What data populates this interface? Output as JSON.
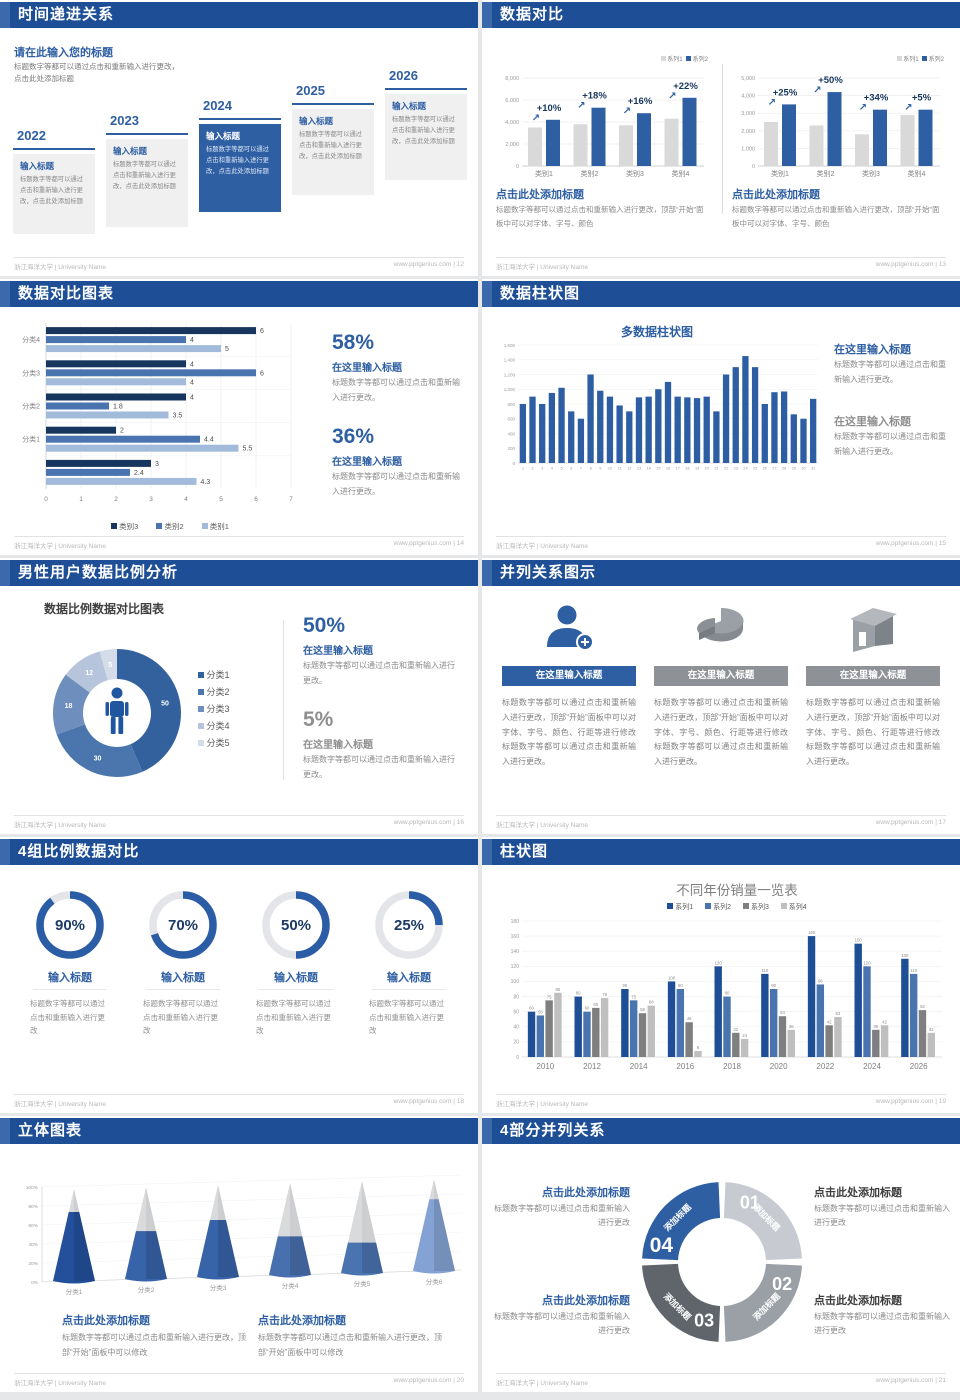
{
  "footer": {
    "left": "浙江海洋大学 | University Name",
    "url": "www.pptgenius.com",
    "sep": "|"
  },
  "colors": {
    "header_bar": "#1e4f96",
    "accent_blue": "#2e5fa3",
    "dark_navy": "#17365d",
    "mid_blue": "#4a74b0",
    "light_blue": "#a3bbdb",
    "gray_bar": "#d9d9d9",
    "body_gray": "#8a8a8a",
    "title_gray": "#8f8f8f"
  },
  "slides": {
    "timeline": {
      "header": "时间递进关系",
      "page": "12",
      "intro_title": "请在此输入您的标题",
      "intro_body": "标题数字等都可以通过点击和重新输入进行更改，点击此处添加标题",
      "item_title": "输入标题",
      "item_body": "标题数字等都可以通过点击和重新输入进行更改，点击此处添加标题",
      "years": [
        "2022",
        "2023",
        "2024",
        "2025",
        "2026"
      ],
      "highlight_index": 2
    },
    "compare": {
      "header": "数据对比",
      "page": "13",
      "legend": [
        "系列1",
        "系列2"
      ],
      "caption_title": "点击此处添加标题",
      "caption_body": "标题数字等都可以通过点击和重新输入进行更改，顶部“开始”面板中可以对字体、字号、颜色",
      "charts": [
        {
          "ymax": 8000,
          "yticks": [
            "0",
            "2,000",
            "4,000",
            "6,000",
            "8,000"
          ],
          "categories": [
            "类别1",
            "类别2",
            "类别3",
            "类别4"
          ],
          "series1": [
            3500,
            3800,
            3700,
            4300
          ],
          "series2": [
            4200,
            5300,
            4800,
            6200
          ],
          "pct_labels": [
            "+10%",
            "+18%",
            "+16%",
            "+22%"
          ]
        },
        {
          "ymax": 5000,
          "yticks": [
            "0",
            "1,000",
            "2,000",
            "3,000",
            "4,000",
            "5,000"
          ],
          "categories": [
            "类别1",
            "类别2",
            "类别3",
            "类别4"
          ],
          "series1": [
            2500,
            2300,
            1800,
            2900
          ],
          "series2": [
            3500,
            4200,
            3200,
            3200
          ],
          "pct_labels": [
            "+25%",
            "+50%",
            "+34%",
            "+5%"
          ]
        }
      ]
    },
    "hbar": {
      "header": "数据对比图表",
      "page": "14",
      "xmax": 7,
      "xticks": [
        "0",
        "1",
        "2",
        "3",
        "4",
        "5",
        "6",
        "7"
      ],
      "groups": [
        {
          "label": "分类4",
          "values": [
            6,
            4,
            5
          ]
        },
        {
          "label": "分类3",
          "values": [
            4,
            6,
            4
          ]
        },
        {
          "label": "分类2",
          "values": [
            4,
            1.8,
            3.5
          ]
        },
        {
          "label": "分类1",
          "values": [
            2,
            4.4,
            5.5
          ]
        },
        {
          "label": "",
          "values": [
            3,
            2.4,
            4.3
          ]
        }
      ],
      "legend": [
        "类别3",
        "类别2",
        "类别1"
      ],
      "stats": [
        {
          "pct": "58%",
          "title": "在这里输入标题",
          "body": "标题数字等都可以通过点击和重新输入进行更改。",
          "style": "blue"
        },
        {
          "pct": "36%",
          "title": "在这里输入标题",
          "body": "标题数字等都可以通过点击和重新输入进行更改。",
          "style": "blue"
        }
      ]
    },
    "col31": {
      "header": "数据柱状图",
      "page": "15",
      "title": "多数据柱状图",
      "ymax": 1600,
      "yticks": [
        "0",
        "200",
        "400",
        "600",
        "800",
        "1,000",
        "1,200",
        "1,400",
        "1,600"
      ],
      "values": [
        800,
        900,
        800,
        950,
        1020,
        700,
        600,
        1200,
        980,
        900,
        780,
        700,
        890,
        900,
        1000,
        1100,
        900,
        890,
        880,
        900,
        700,
        1200,
        1300,
        1450,
        1300,
        800,
        960,
        970,
        660,
        600,
        870
      ],
      "stats": [
        {
          "title": "在这里输入标题",
          "body": "标题数字等都可以通过点击和重新输入进行更改。",
          "style": "blue"
        },
        {
          "title": "在这里输入标题",
          "body": "标题数字等都可以通过点击和重新输入进行更改。",
          "style": "gray"
        }
      ]
    },
    "donut": {
      "header": "男性用户数据比例分析",
      "page": "16",
      "title": "数据比例数据对比图表",
      "slices": [
        {
          "label": "分类1",
          "value": 50,
          "color": "#33619e"
        },
        {
          "label": "分类2",
          "value": 30,
          "color": "#4a76ad"
        },
        {
          "label": "分类3",
          "value": 18,
          "color": "#6e8ebd"
        },
        {
          "label": "分类4",
          "value": 12,
          "color": "#b7c5dc"
        },
        {
          "label": "分类5",
          "value": 5,
          "color": "#d5dce9"
        }
      ],
      "stats": [
        {
          "pct": "50%",
          "title": "在这里输入标题",
          "body": "标题数字等都可以通过点击和重新输入进行更改。",
          "style": "blue"
        },
        {
          "pct": "5%",
          "title": "在这里输入标题",
          "body": "标题数字等都可以通过点击和重新输入进行更改。",
          "style": "gray"
        }
      ]
    },
    "parallel3": {
      "header": "并列关系图示",
      "page": "17",
      "items": [
        {
          "title": "在这里输入标题",
          "icon": "person-add-icon",
          "style": "blue"
        },
        {
          "title": "在这里输入标题",
          "icon": "pie-3d-icon",
          "style": "gray"
        },
        {
          "title": "在这里输入标题",
          "icon": "building-icon",
          "style": "gray"
        }
      ],
      "body": "标题数字等都可以通过点击和重新输入进行更改，顶部“开始”面板中可以对字体、字号、颜色、行距等进行修改标题数字等都可以通过点击和重新输入进行更改。"
    },
    "rings": {
      "header": "4组比例数据对比",
      "page": "18",
      "item_title": "输入标题",
      "item_body": "标题数字等都可以通过点击和重新输入进行更改",
      "items": [
        {
          "pct": 90,
          "label": "90%"
        },
        {
          "pct": 70,
          "label": "70%"
        },
        {
          "pct": 50,
          "label": "50%"
        },
        {
          "pct": 25,
          "label": "25%"
        }
      ]
    },
    "yearbars": {
      "header": "柱状图",
      "page": "19",
      "title": "不同年份销量一览表",
      "legend": [
        "系列1",
        "系列2",
        "系列3",
        "系列4"
      ],
      "years": [
        "2010",
        "2012",
        "2014",
        "2016",
        "2018",
        "2020",
        "2022",
        "2024",
        "2026"
      ],
      "ymax": 180,
      "yticks": [
        "0",
        "20",
        "40",
        "60",
        "80",
        "100",
        "120",
        "140",
        "160",
        "180"
      ],
      "series": [
        {
          "name": "系列1",
          "color": "#1e4f96",
          "values": [
            60,
            80,
            90,
            100,
            120,
            110,
            160,
            150,
            130
          ]
        },
        {
          "name": "系列2",
          "color": "#4a74b0",
          "values": [
            55,
            60,
            75,
            90,
            80,
            90,
            96,
            120,
            110
          ]
        },
        {
          "name": "系列3",
          "color": "#7f7f7f",
          "values": [
            75,
            65,
            58,
            46,
            32,
            54,
            42,
            36,
            62
          ]
        },
        {
          "name": "系列4",
          "color": "#bfbfbf",
          "values": [
            85,
            78,
            68,
            8,
            24,
            36,
            53,
            42,
            32
          ]
        }
      ]
    },
    "cones": {
      "header": "立体图表",
      "page": "20",
      "yticks": [
        "0%",
        "20%",
        "40%",
        "60%",
        "80%",
        "100%"
      ],
      "categories": [
        "分类1",
        "分类2",
        "分类3",
        "分类4",
        "分类5",
        "分类6"
      ],
      "fills_pct": [
        75,
        52,
        62,
        42,
        33,
        78
      ],
      "fill_colors": [
        "#24509b",
        "#3763a8",
        "#3763a8",
        "#486fae",
        "#4a74b0",
        "#84a3d4"
      ],
      "captions": [
        {
          "title": "点击此处添加标题",
          "body": "标题数字等都可以通过点击和重新输入进行更改，顶部“开始”面板中可以修改"
        },
        {
          "title": "点击此处添加标题",
          "body": "标题数字等都可以通过点击和重新输入进行更改，顶部“开始”面板中可以修改"
        }
      ]
    },
    "circle4": {
      "header": "4部分并列关系",
      "page": "21",
      "segments": [
        {
          "num": "01",
          "label": "添加标题",
          "color": "#c7cbd1"
        },
        {
          "num": "02",
          "label": "添加标题",
          "color": "#9aa0a6"
        },
        {
          "num": "03",
          "label": "添加标题",
          "color": "#5f656b"
        },
        {
          "num": "04",
          "label": "添加标题",
          "color": "#2e5fa3"
        }
      ],
      "captions": [
        {
          "title": "点击此处添加标题",
          "body": "标题数字等都可以通过点击和重新输入进行更改",
          "pos": "tl",
          "style": "blue"
        },
        {
          "title": "点击此处添加标题",
          "body": "标题数字等都可以通过点击和重新输入进行更改",
          "pos": "tr",
          "style": "dark"
        },
        {
          "title": "点击此处添加标题",
          "body": "标题数字等都可以通过点击和重新输入进行更改",
          "pos": "bl",
          "style": "blue"
        },
        {
          "title": "点击此处添加标题",
          "body": "标题数字等都可以通过点击和重新输入进行更改",
          "pos": "br",
          "style": "dark"
        }
      ]
    }
  }
}
